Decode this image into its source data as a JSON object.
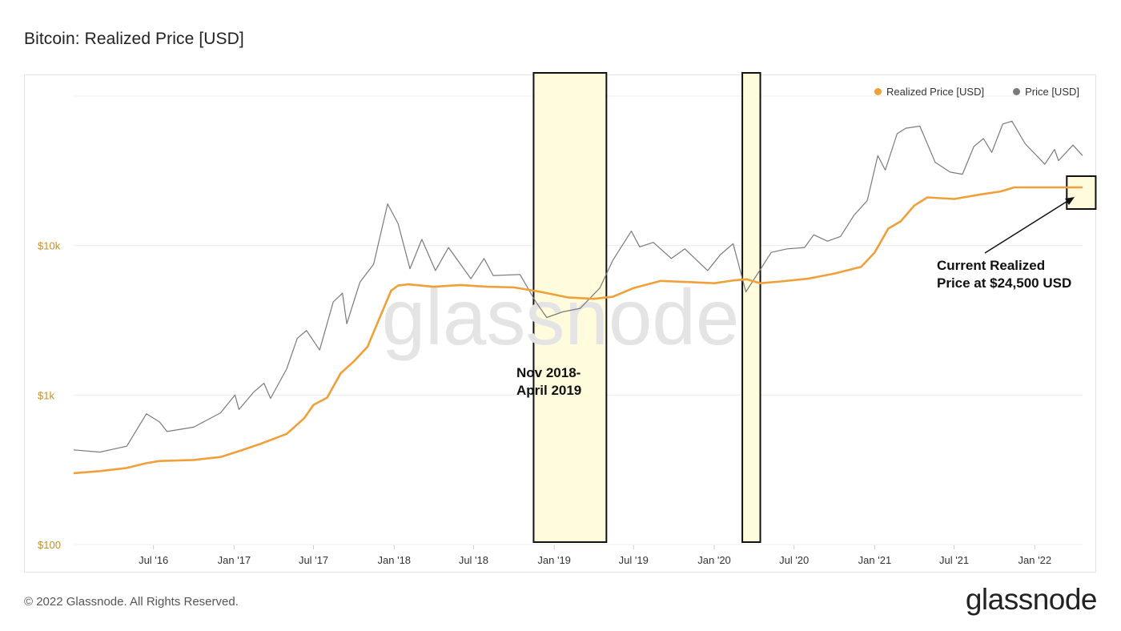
{
  "title": "Bitcoin: Realized Price [USD]",
  "footer": "© 2022 Glassnode. All Rights Reserved.",
  "brand": "glassnode",
  "watermark": "glassnode",
  "legend": {
    "placement": "top-right",
    "items": [
      {
        "label": "Realized Price [USD]",
        "color": "#f0a03a"
      },
      {
        "label": "Price [USD]",
        "color": "#7a7a7a"
      }
    ]
  },
  "annotations": {
    "current_line1": "Current Realized",
    "current_line2": "Price at $24,500 USD",
    "period_line1": "Nov 2018-",
    "period_line2": "April 2019"
  },
  "colors": {
    "realized": "#f0a03a",
    "price": "#7a7a7a",
    "highlight_fill": "#fffbdc",
    "y_tick": "#c8902a",
    "grid": "#ececec"
  },
  "chart_data": {
    "type": "line",
    "y_scale": "log",
    "ylim": [
      100,
      100000
    ],
    "xlim": [
      "2016-01-01",
      "2022-04-20"
    ],
    "grid": true,
    "y_ticks": [
      {
        "value": 100,
        "label": "$100"
      },
      {
        "value": 1000,
        "label": "$1k"
      },
      {
        "value": 10000,
        "label": "$10k"
      }
    ],
    "x_ticks": [
      {
        "date": "2016-07-01",
        "label": "Jul '16"
      },
      {
        "date": "2017-01-01",
        "label": "Jan '17"
      },
      {
        "date": "2017-07-01",
        "label": "Jul '17"
      },
      {
        "date": "2018-01-01",
        "label": "Jan '18"
      },
      {
        "date": "2018-07-01",
        "label": "Jul '18"
      },
      {
        "date": "2019-01-01",
        "label": "Jan '19"
      },
      {
        "date": "2019-07-01",
        "label": "Jul '19"
      },
      {
        "date": "2020-01-01",
        "label": "Jan '20"
      },
      {
        "date": "2020-07-01",
        "label": "Jul '20"
      },
      {
        "date": "2021-01-01",
        "label": "Jan '21"
      },
      {
        "date": "2021-07-01",
        "label": "Jul '21"
      },
      {
        "date": "2022-01-01",
        "label": "Jan '22"
      }
    ],
    "highlights": [
      {
        "start": "2018-11-15",
        "end": "2019-04-30"
      },
      {
        "start": "2020-03-05",
        "end": "2020-04-15"
      },
      {
        "start": "2022-03-15",
        "end": "2022-05-20"
      }
    ],
    "series": [
      {
        "name": "Realized Price [USD]",
        "color": "#f0a03a",
        "points": [
          [
            "2016-01-01",
            300
          ],
          [
            "2016-03-01",
            310
          ],
          [
            "2016-05-01",
            325
          ],
          [
            "2016-06-15",
            350
          ],
          [
            "2016-07-15",
            362
          ],
          [
            "2016-10-01",
            368
          ],
          [
            "2016-12-01",
            385
          ],
          [
            "2017-01-10",
            420
          ],
          [
            "2017-03-01",
            470
          ],
          [
            "2017-05-01",
            550
          ],
          [
            "2017-06-10",
            700
          ],
          [
            "2017-07-01",
            860
          ],
          [
            "2017-08-01",
            960
          ],
          [
            "2017-09-01",
            1400
          ],
          [
            "2017-10-01",
            1680
          ],
          [
            "2017-11-01",
            2100
          ],
          [
            "2017-12-01",
            3400
          ],
          [
            "2017-12-25",
            5000
          ],
          [
            "2018-01-10",
            5400
          ],
          [
            "2018-02-01",
            5500
          ],
          [
            "2018-04-01",
            5300
          ],
          [
            "2018-06-01",
            5450
          ],
          [
            "2018-08-01",
            5300
          ],
          [
            "2018-10-01",
            5250
          ],
          [
            "2018-12-01",
            4900
          ],
          [
            "2019-02-01",
            4500
          ],
          [
            "2019-04-01",
            4400
          ],
          [
            "2019-05-15",
            4550
          ],
          [
            "2019-07-01",
            5200
          ],
          [
            "2019-09-01",
            5800
          ],
          [
            "2019-11-01",
            5700
          ],
          [
            "2020-01-01",
            5600
          ],
          [
            "2020-02-15",
            5850
          ],
          [
            "2020-03-15",
            5950
          ],
          [
            "2020-04-15",
            5600
          ],
          [
            "2020-06-01",
            5750
          ],
          [
            "2020-08-01",
            6000
          ],
          [
            "2020-10-01",
            6500
          ],
          [
            "2020-12-01",
            7200
          ],
          [
            "2021-01-01",
            9000
          ],
          [
            "2021-02-01",
            13000
          ],
          [
            "2021-03-01",
            14500
          ],
          [
            "2021-04-01",
            18500
          ],
          [
            "2021-05-01",
            21000
          ],
          [
            "2021-07-01",
            20500
          ],
          [
            "2021-09-01",
            22000
          ],
          [
            "2021-10-15",
            23000
          ],
          [
            "2021-11-15",
            24500
          ],
          [
            "2022-01-01",
            24500
          ],
          [
            "2022-04-20",
            24500
          ]
        ]
      },
      {
        "name": "Price [USD]",
        "color": "#7a7a7a",
        "points": [
          [
            "2016-01-01",
            430
          ],
          [
            "2016-03-01",
            415
          ],
          [
            "2016-05-01",
            455
          ],
          [
            "2016-06-15",
            750
          ],
          [
            "2016-07-15",
            660
          ],
          [
            "2016-08-01",
            570
          ],
          [
            "2016-10-01",
            610
          ],
          [
            "2016-12-01",
            760
          ],
          [
            "2017-01-03",
            1000
          ],
          [
            "2017-01-12",
            800
          ],
          [
            "2017-02-15",
            1050
          ],
          [
            "2017-03-10",
            1200
          ],
          [
            "2017-03-25",
            950
          ],
          [
            "2017-05-01",
            1500
          ],
          [
            "2017-05-25",
            2400
          ],
          [
            "2017-06-15",
            2700
          ],
          [
            "2017-07-15",
            2000
          ],
          [
            "2017-08-15",
            4200
          ],
          [
            "2017-09-05",
            4800
          ],
          [
            "2017-09-15",
            3000
          ],
          [
            "2017-10-15",
            5700
          ],
          [
            "2017-11-15",
            7500
          ],
          [
            "2017-12-17",
            19000
          ],
          [
            "2018-01-10",
            14000
          ],
          [
            "2018-02-06",
            7000
          ],
          [
            "2018-03-05",
            11000
          ],
          [
            "2018-04-05",
            6800
          ],
          [
            "2018-05-05",
            9700
          ],
          [
            "2018-06-25",
            6000
          ],
          [
            "2018-07-25",
            8200
          ],
          [
            "2018-08-15",
            6300
          ],
          [
            "2018-10-15",
            6400
          ],
          [
            "2018-11-20",
            4200
          ],
          [
            "2018-12-15",
            3300
          ],
          [
            "2019-01-20",
            3600
          ],
          [
            "2019-03-01",
            3800
          ],
          [
            "2019-04-15",
            5200
          ],
          [
            "2019-05-15",
            8000
          ],
          [
            "2019-06-26",
            12500
          ],
          [
            "2019-07-15",
            9800
          ],
          [
            "2019-08-15",
            10500
          ],
          [
            "2019-09-25",
            8200
          ],
          [
            "2019-10-26",
            9500
          ],
          [
            "2019-12-17",
            6800
          ],
          [
            "2020-01-15",
            8700
          ],
          [
            "2020-02-13",
            10300
          ],
          [
            "2020-03-13",
            4900
          ],
          [
            "2020-04-15",
            6900
          ],
          [
            "2020-05-10",
            9000
          ],
          [
            "2020-06-15",
            9500
          ],
          [
            "2020-07-25",
            9700
          ],
          [
            "2020-08-15",
            11800
          ],
          [
            "2020-09-15",
            10700
          ],
          [
            "2020-10-15",
            11500
          ],
          [
            "2020-11-15",
            16000
          ],
          [
            "2020-12-15",
            20000
          ],
          [
            "2021-01-08",
            40000
          ],
          [
            "2021-01-25",
            32000
          ],
          [
            "2021-02-21",
            56000
          ],
          [
            "2021-03-13",
            61000
          ],
          [
            "2021-04-14",
            63000
          ],
          [
            "2021-05-19",
            36000
          ],
          [
            "2021-06-22",
            31000
          ],
          [
            "2021-07-20",
            30000
          ],
          [
            "2021-08-15",
            46000
          ],
          [
            "2021-09-06",
            52000
          ],
          [
            "2021-09-25",
            42000
          ],
          [
            "2021-10-20",
            65000
          ],
          [
            "2021-11-10",
            68000
          ],
          [
            "2021-12-10",
            48000
          ],
          [
            "2022-01-24",
            35000
          ],
          [
            "2022-02-15",
            44000
          ],
          [
            "2022-02-24",
            37000
          ],
          [
            "2022-03-29",
            47000
          ],
          [
            "2022-04-20",
            40000
          ]
        ]
      }
    ]
  }
}
